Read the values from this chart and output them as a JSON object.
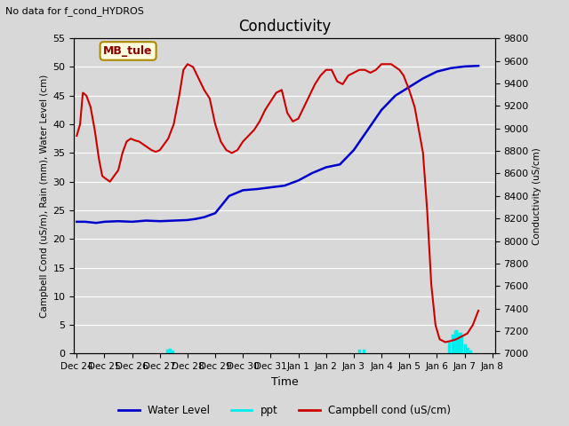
{
  "title": "Conductivity",
  "top_left_text": "No data for f_cond_HYDROS",
  "ylabel_left": "Campbell Cond (uS/m), Rain (mm), Water Level (cm)",
  "ylabel_right": "Conductivity (uS/cm)",
  "xlabel": "Time",
  "ylim_left": [
    0,
    55
  ],
  "ylim_right": [
    7000,
    9800
  ],
  "annotation_box": "MB_tule",
  "x_tick_labels": [
    "Dec 24",
    "Dec 25",
    "Dec 26",
    "Dec 27",
    "Dec 28",
    "Dec 29",
    "Dec 30",
    "Dec 31",
    "Jan 1",
    "Jan 2",
    "Jan 3",
    "Jan 4",
    "Jan 5",
    "Jan 6",
    "Jan 7",
    "Jan 8"
  ],
  "water_level_color": "#0000cc",
  "ppt_color": "#00eeee",
  "campbell_cond_color": "#cc0000",
  "grid_color": "#ffffff",
  "bg_color": "#d8d8d8",
  "water_level_x": [
    0,
    0.3,
    0.7,
    1.0,
    1.5,
    2.0,
    2.5,
    3.0,
    3.5,
    4.0,
    4.3,
    4.6,
    5.0,
    5.5,
    6.0,
    6.5,
    7.0,
    7.5,
    8.0,
    8.5,
    9.0,
    9.5,
    10.0,
    10.5,
    11.0,
    11.5,
    12.0,
    12.5,
    13.0,
    13.5,
    14.0,
    14.5
  ],
  "water_level_y": [
    23.0,
    23.0,
    22.8,
    23.0,
    23.1,
    23.0,
    23.2,
    23.1,
    23.2,
    23.3,
    23.5,
    23.8,
    24.5,
    27.5,
    28.5,
    28.7,
    29.0,
    29.3,
    30.2,
    31.5,
    32.5,
    33.0,
    35.5,
    39.0,
    42.5,
    45.0,
    46.5,
    48.0,
    49.2,
    49.8,
    50.1,
    50.2
  ],
  "ppt_x": [
    3.25,
    3.35,
    3.45,
    10.2,
    10.35,
    13.45,
    13.55,
    13.65,
    13.7,
    13.75,
    13.8,
    13.85,
    13.9,
    14.0,
    14.1,
    14.2
  ],
  "ppt_y": [
    0.5,
    0.7,
    0.4,
    0.6,
    0.5,
    1.8,
    3.2,
    3.8,
    4.0,
    3.5,
    3.0,
    3.5,
    2.8,
    1.5,
    0.8,
    0.3
  ],
  "campbell_x": [
    0,
    0.12,
    0.22,
    0.35,
    0.5,
    0.65,
    0.8,
    0.92,
    1.05,
    1.2,
    1.35,
    1.5,
    1.65,
    1.8,
    1.95,
    2.1,
    2.25,
    2.4,
    2.55,
    2.7,
    2.85,
    3.0,
    3.15,
    3.3,
    3.5,
    3.7,
    3.85,
    4.0,
    4.2,
    4.4,
    4.6,
    4.8,
    5.0,
    5.2,
    5.4,
    5.6,
    5.8,
    6.0,
    6.2,
    6.4,
    6.6,
    6.8,
    7.0,
    7.2,
    7.4,
    7.6,
    7.8,
    8.0,
    8.2,
    8.4,
    8.6,
    8.8,
    9.0,
    9.2,
    9.4,
    9.6,
    9.8,
    10.0,
    10.2,
    10.4,
    10.6,
    10.8,
    11.0,
    11.2,
    11.35,
    11.5,
    11.65,
    11.8,
    12.0,
    12.2,
    12.35,
    12.5,
    12.65,
    12.8,
    12.95,
    13.1,
    13.3,
    13.5,
    13.7,
    13.9,
    14.1,
    14.3,
    14.5
  ],
  "campbell_y": [
    38,
    40,
    45.5,
    45,
    43,
    39,
    34,
    31,
    30.5,
    30,
    31,
    32,
    35,
    37,
    37.5,
    37.2,
    37,
    36.5,
    36,
    35.5,
    35.2,
    35.5,
    36.5,
    37.5,
    40,
    45,
    49.5,
    50.5,
    50,
    48,
    46,
    44.5,
    40,
    37,
    35.5,
    35,
    35.5,
    37,
    38,
    39,
    40.5,
    42.5,
    44,
    45.5,
    46,
    42,
    40.5,
    41,
    43,
    45,
    47,
    48.5,
    49.5,
    49.5,
    47.5,
    47,
    48.5,
    49,
    49.5,
    49.5,
    49,
    49.5,
    50.5,
    50.5,
    50.5,
    50,
    49.5,
    48.5,
    46,
    43,
    39,
    35,
    25,
    12,
    5,
    2.5,
    2.0,
    2.2,
    2.5,
    3.0,
    3.5,
    5.0,
    7.5
  ]
}
